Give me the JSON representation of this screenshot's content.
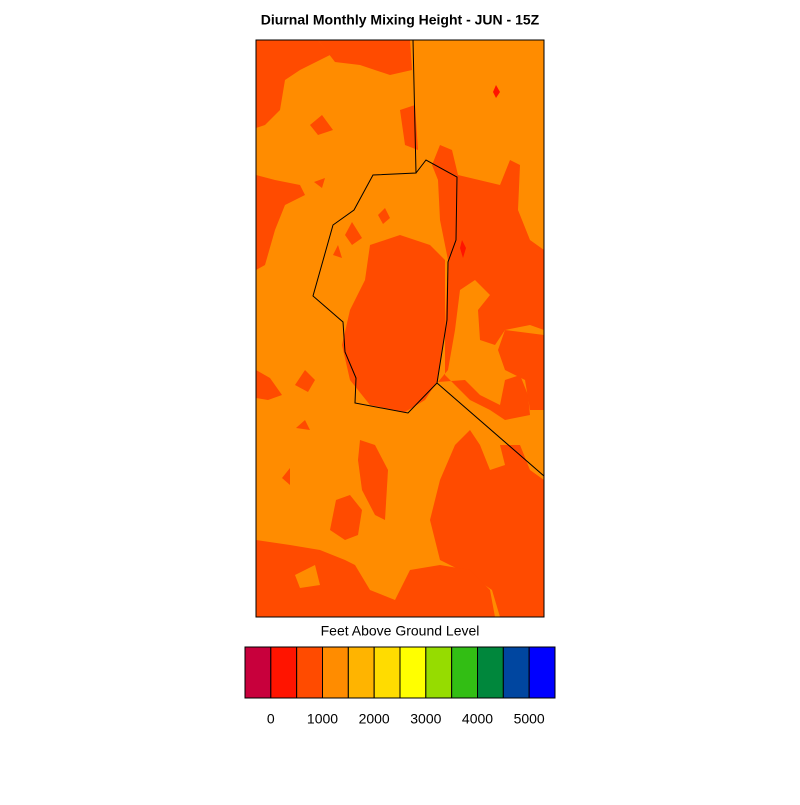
{
  "title": "Diurnal Monthly Mixing Height - JUN - 15Z",
  "colorbar": {
    "label": "Feet Above Ground Level",
    "colors": [
      "#c8003c",
      "#ff1400",
      "#ff4b00",
      "#ff8c00",
      "#ffb400",
      "#ffdc00",
      "#ffff00",
      "#96dc00",
      "#32be14",
      "#00873c",
      "#0046a0",
      "#0000ff"
    ],
    "range": [
      -500,
      5500
    ],
    "ticks": [
      0,
      1000,
      2000,
      3000,
      4000,
      5000
    ]
  }
}
